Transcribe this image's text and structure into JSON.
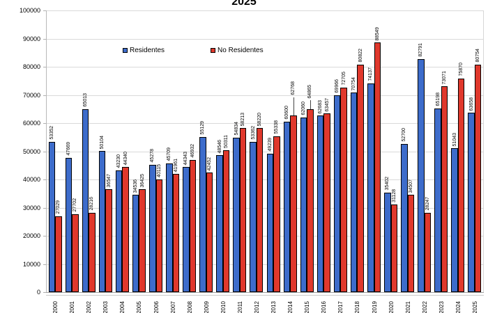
{
  "title": "2025",
  "legend": {
    "residentes_label": "Residentes",
    "no_residentes_label": "No Residentes"
  },
  "colors": {
    "residentes": "#3d6ccb",
    "no_residentes": "#e0382c",
    "bar_border": "#000000",
    "gridline": "#d9d9d9",
    "axis": "#9e9e9e"
  },
  "y_axis": {
    "tick_labels": [
      "0",
      "10000",
      "20000",
      "30000",
      "40000",
      "50000",
      "60000",
      "70000",
      "80000",
      "90000",
      "100000"
    ]
  },
  "chart_data": {
    "type": "bar",
    "title": "2025",
    "categories": [
      "2000",
      "2001",
      "2002",
      "2003",
      "2004",
      "2005",
      "2006",
      "2007",
      "2008",
      "2009",
      "2010",
      "2011",
      "2012",
      "2013",
      "2014",
      "2015",
      "2016",
      "2017",
      "2018",
      "2019",
      "2020",
      "2021",
      "2022",
      "2023",
      "2024",
      "2025"
    ],
    "series": [
      {
        "name": "Residentes",
        "color": "#3d6ccb",
        "values": [
          53352,
          47669,
          65013,
          50104,
          43230,
          34536,
          45278,
          45709,
          44343,
          55129,
          48546,
          54834,
          53362,
          49239,
          60600,
          62060,
          62683,
          69966,
          70754,
          74137,
          35402,
          52700,
          82791,
          65198,
          51043,
          63658
        ]
      },
      {
        "name": "No Residentes",
        "color": "#e0382c",
        "values": [
          27029,
          27702,
          28216,
          36547,
          44340,
          36425,
          40115,
          41961,
          46932,
          42452,
          50311,
          58213,
          58220,
          55338,
          62768,
          64865,
          63457,
          72705,
          80822,
          88549,
          31128,
          34507,
          28247,
          73071,
          75870,
          80754
        ]
      }
    ],
    "ylim": [
      0,
      100000
    ],
    "ytick_interval": 10000,
    "grid": true,
    "legend_position": "top-inside",
    "value_labels": "rotated-90",
    "label_leaders": [
      {
        "series": 1,
        "index": 14,
        "offset": 26
      },
      {
        "series": 1,
        "index": 15,
        "offset": 13
      }
    ]
  }
}
